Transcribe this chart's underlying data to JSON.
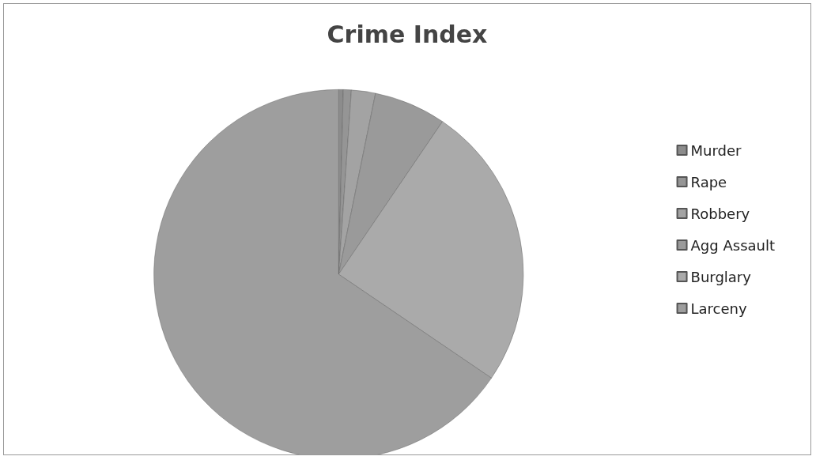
{
  "chart_data": {
    "type": "pie",
    "title": "Crime Index",
    "categories": [
      "Murder",
      "Rape",
      "Robbery",
      "Agg Assault",
      "Burglary",
      "Larceny"
    ],
    "values": [
      0.4,
      0.7,
      2.1,
      6.3,
      25,
      65.5
    ],
    "colors": [
      "#8c8c8c",
      "#959595",
      "#a3a3a3",
      "#9a9a9a",
      "#aaaaaa",
      "#9e9e9e"
    ],
    "legend": "right"
  }
}
